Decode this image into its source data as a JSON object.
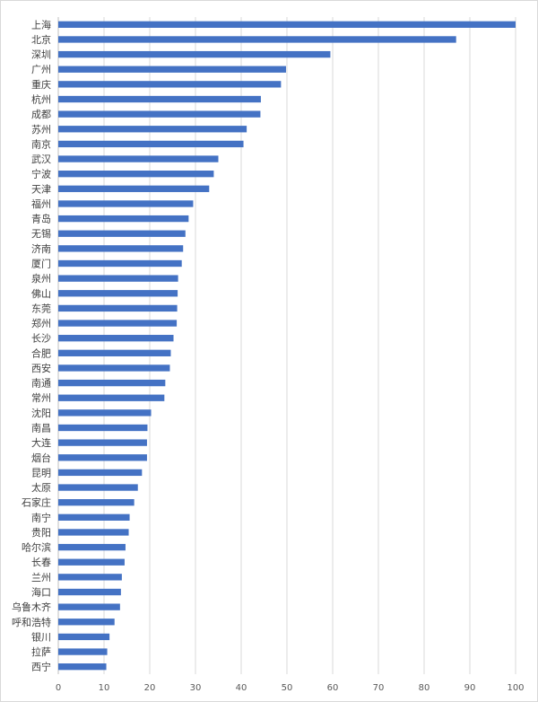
{
  "chart_data": {
    "type": "bar",
    "orientation": "horizontal",
    "title": "",
    "xlabel": "",
    "ylabel": "",
    "xlim": [
      0,
      100
    ],
    "xticks": [
      0,
      10,
      20,
      30,
      40,
      50,
      60,
      70,
      80,
      90,
      100
    ],
    "grid": true,
    "legend": "none",
    "bar_color": "#4472C4",
    "categories": [
      "上海",
      "北京",
      "深圳",
      "广州",
      "重庆",
      "杭州",
      "成都",
      "苏州",
      "南京",
      "武汉",
      "宁波",
      "天津",
      "福州",
      "青岛",
      "无锡",
      "济南",
      "厦门",
      "泉州",
      "佛山",
      "东莞",
      "郑州",
      "长沙",
      "合肥",
      "西安",
      "南通",
      "常州",
      "沈阳",
      "南昌",
      "大连",
      "烟台",
      "昆明",
      "太原",
      "石家庄",
      "南宁",
      "贵阳",
      "哈尔滨",
      "长春",
      "兰州",
      "海口",
      "乌鲁木齐",
      "呼和浩特",
      "银川",
      "拉萨",
      "西宁"
    ],
    "values": [
      100,
      87,
      59.5,
      49.8,
      48.7,
      44.3,
      44.2,
      41.2,
      40.5,
      35,
      34,
      33,
      29.5,
      28.5,
      27.8,
      27.3,
      27,
      26.2,
      26.1,
      26,
      25.9,
      25.2,
      24.6,
      24.4,
      23.4,
      23.2,
      20.3,
      19.5,
      19.4,
      19.4,
      18.3,
      17.4,
      16.6,
      15.6,
      15.4,
      14.7,
      14.5,
      13.9,
      13.7,
      13.5,
      12.3,
      11.2,
      10.7,
      10.5
    ]
  }
}
